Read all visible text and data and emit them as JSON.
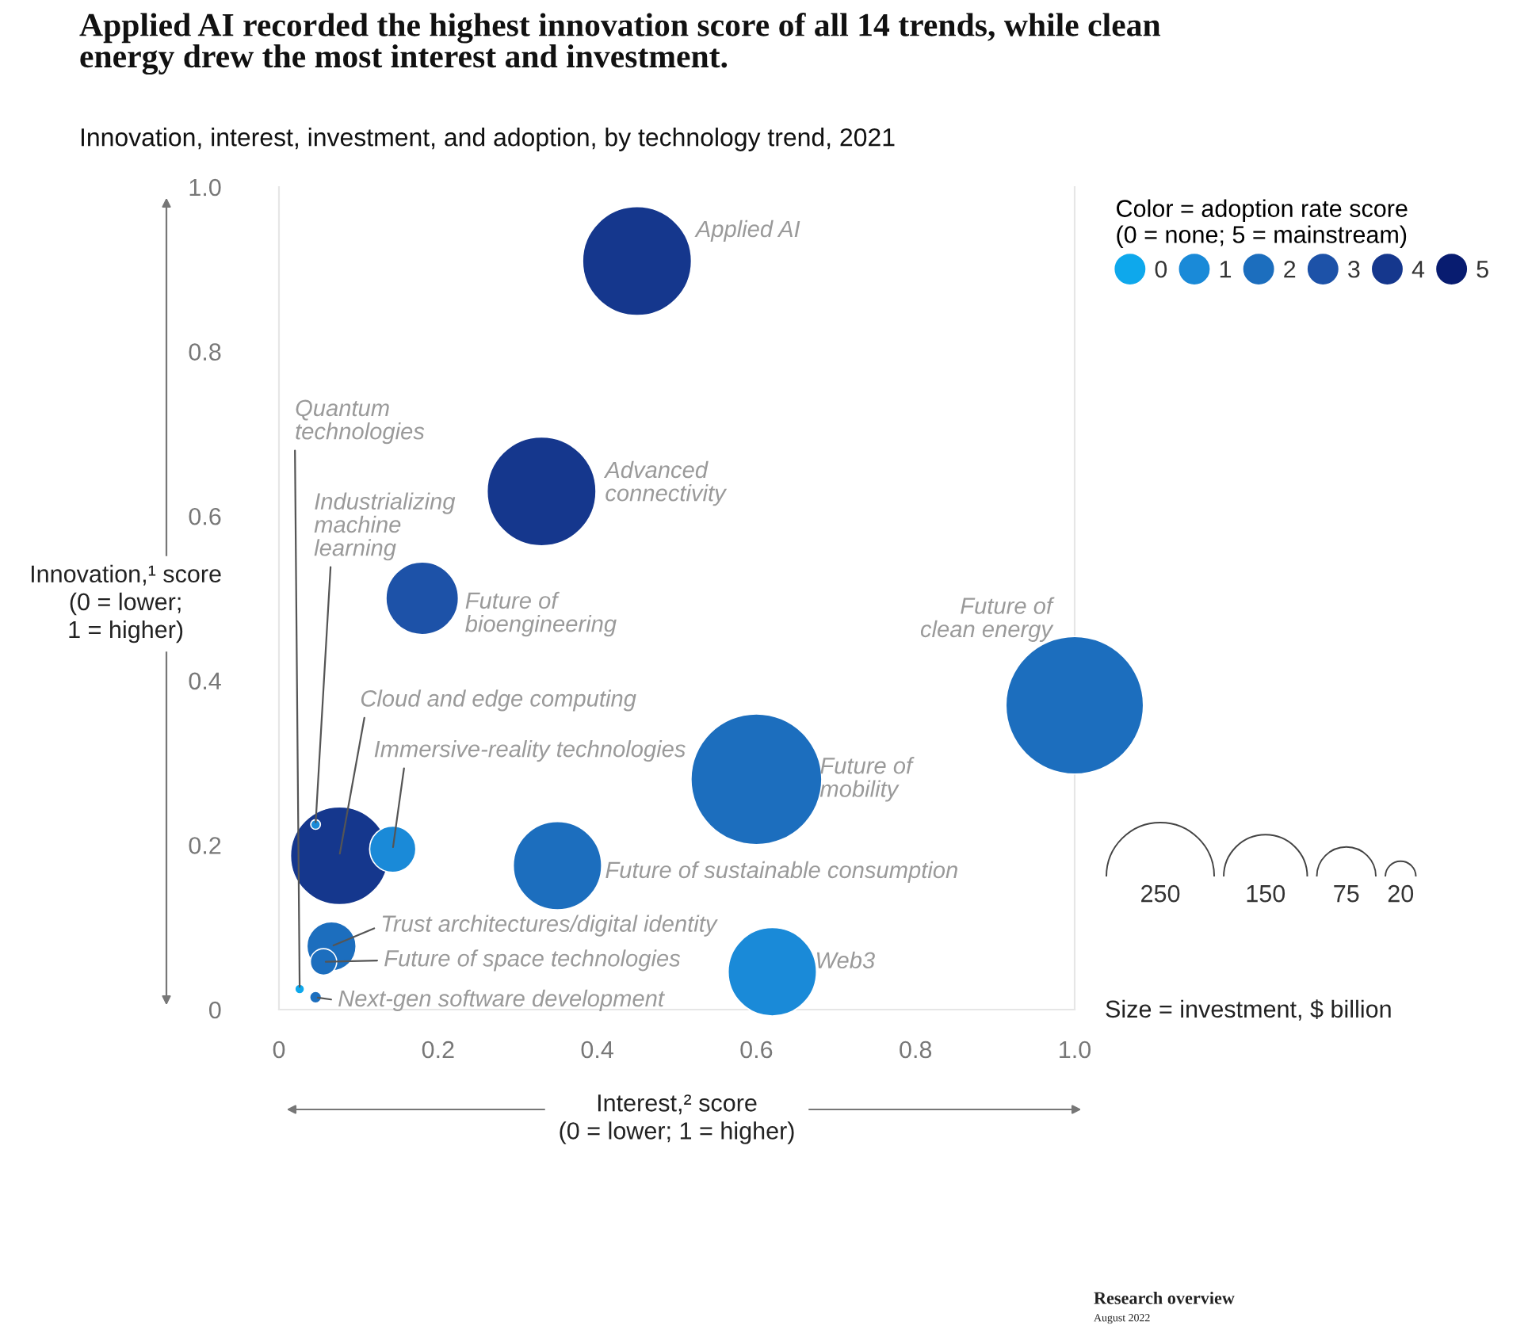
{
  "chart_data": {
    "type": "bubble",
    "title": "Applied AI recorded the highest innovation score of all 14 trends, while clean\nenergy drew the most interest and investment.",
    "subtitle": "Innovation, interest, investment, and adoption, by technology trend, 2021",
    "xlabel": "Interest,² score\n(0 = lower; 1 = higher)",
    "ylabel": "Innovation,¹ score\n(0 = lower;\n1 = higher)",
    "legend_title": "Color = adoption rate score\n(0 = none; 5 = mainstream)",
    "xlim": [
      0,
      1.0
    ],
    "ylim": [
      0,
      1.0
    ],
    "xticks": [
      0,
      0.2,
      0.4,
      0.6,
      0.8,
      {
        "value": 1.0,
        "label": "1.0"
      }
    ],
    "yticks": [
      0,
      0.2,
      0.4,
      0.6,
      0.8,
      {
        "value": 1.0,
        "label": "1.0"
      }
    ],
    "size_legend": [
      250,
      150,
      75,
      20
    ],
    "legend": "right",
    "grid": false,
    "series": [
      {
        "name": "0",
        "color": "#0ea8ec",
        "x": [
          0.026
        ],
        "values": [
          0.025
        ],
        "sizes": [
          2
        ]
      },
      {
        "name": "1",
        "color": "#1a8ad8",
        "x": [
          0.62,
          0.143,
          0.046
        ],
        "values": [
          0.046,
          0.195,
          0.225
        ],
        "sizes": [
          168,
          46,
          2
        ]
      },
      {
        "name": "2",
        "color": "#1c6ebe",
        "x": [
          1.0,
          0.6,
          0.35,
          0.066,
          0.056,
          0.046
        ],
        "values": [
          0.37,
          0.28,
          0.175,
          0.077,
          0.058,
          0.015
        ],
        "sizes": [
          407,
          368,
          168,
          52,
          15,
          3
        ]
      },
      {
        "name": "3",
        "color": "#1d52a8",
        "x": [
          0.18
        ],
        "values": [
          0.5
        ],
        "sizes": [
          113
        ]
      },
      {
        "name": "4",
        "color": "#15378d",
        "x": [
          0.45,
          0.33,
          0.076
        ],
        "values": [
          0.91,
          0.63,
          0.187
        ],
        "sizes": [
          255,
          255,
          206
        ]
      },
      {
        "name": "5",
        "color": "#081c70"
      }
    ],
    "annotations": [
      {
        "text": "Applied AI",
        "x": 0.45,
        "y": 0.91
      },
      {
        "text": "Advanced\nconnectivity",
        "x": 0.33,
        "y": 0.63
      },
      {
        "text": "Future of\nbioengineering",
        "x": 0.18,
        "y": 0.5
      },
      {
        "text": "Future of\nclean energy",
        "x": 1.0,
        "y": 0.37
      },
      {
        "text": "Future of\nmobility",
        "x": 0.6,
        "y": 0.28
      },
      {
        "text": "Future of sustainable consumption",
        "x": 0.35,
        "y": 0.175
      },
      {
        "text": "Web3",
        "x": 0.62,
        "y": 0.046
      },
      {
        "text": "Quantum\ntechnologies",
        "x": 0.026,
        "y": 0.025
      },
      {
        "text": "Industrializing\nmachine\nlearning",
        "x": 0.046,
        "y": 0.225
      },
      {
        "text": "Cloud and edge computing",
        "x": 0.076,
        "y": 0.187
      },
      {
        "text": "Immersive-reality technologies",
        "x": 0.143,
        "y": 0.195
      },
      {
        "text": "Trust architectures/digital identity",
        "x": 0.066,
        "y": 0.077
      },
      {
        "text": "Future of space technologies",
        "x": 0.056,
        "y": 0.058
      },
      {
        "text": "Next-gen software development",
        "x": 0.046,
        "y": 0.015
      },
      "Size = investment, $ billion",
      "Research overview",
      "August 2022"
    ]
  }
}
